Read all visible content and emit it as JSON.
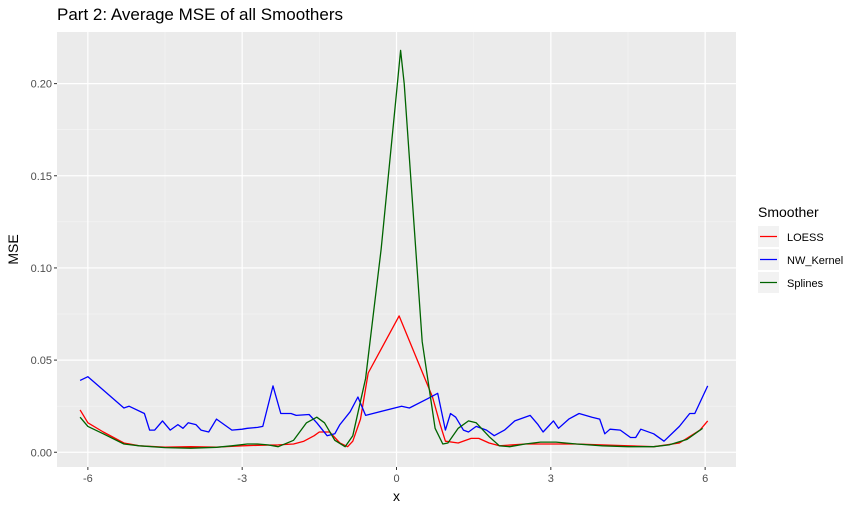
{
  "chart_data": {
    "type": "line",
    "title": "Part 2: Average MSE of all Smoothers",
    "xlabel": "x",
    "ylabel": "MSE",
    "xlim": [
      -6.6,
      6.6
    ],
    "ylim": [
      -0.008,
      0.228
    ],
    "x_ticks": [
      -6,
      -3,
      0,
      3,
      6
    ],
    "x_tick_labels": [
      "-6",
      "-3",
      "0",
      "3",
      "6"
    ],
    "y_ticks": [
      0.0,
      0.05,
      0.1,
      0.15,
      0.2
    ],
    "y_tick_labels": [
      "0.00",
      "0.05",
      "0.10",
      "0.15",
      "0.20"
    ],
    "grid": true,
    "legend": {
      "title": "Smoother",
      "position": "right"
    },
    "series": [
      {
        "name": "LOESS",
        "color": "#ff0000",
        "points": [
          [
            -6.15,
            0.023
          ],
          [
            -6.0,
            0.016
          ],
          [
            -5.7,
            0.011
          ],
          [
            -5.3,
            0.005
          ],
          [
            -5.0,
            0.0035
          ],
          [
            -4.5,
            0.0028
          ],
          [
            -4.0,
            0.003
          ],
          [
            -3.5,
            0.0028
          ],
          [
            -3.0,
            0.0035
          ],
          [
            -2.7,
            0.0038
          ],
          [
            -2.3,
            0.004
          ],
          [
            -2.0,
            0.0045
          ],
          [
            -1.8,
            0.006
          ],
          [
            -1.6,
            0.009
          ],
          [
            -1.5,
            0.011
          ],
          [
            -1.3,
            0.011
          ],
          [
            -1.1,
            0.005
          ],
          [
            -0.95,
            0.003
          ],
          [
            -0.85,
            0.006
          ],
          [
            -0.7,
            0.018
          ],
          [
            -0.55,
            0.043
          ],
          [
            0.05,
            0.074
          ],
          [
            0.7,
            0.03
          ],
          [
            0.85,
            0.015
          ],
          [
            0.95,
            0.006
          ],
          [
            1.2,
            0.005
          ],
          [
            1.45,
            0.0075
          ],
          [
            1.6,
            0.0075
          ],
          [
            1.8,
            0.005
          ],
          [
            2.0,
            0.0035
          ],
          [
            2.5,
            0.0045
          ],
          [
            3.0,
            0.0045
          ],
          [
            3.5,
            0.0045
          ],
          [
            4.0,
            0.004
          ],
          [
            4.5,
            0.0035
          ],
          [
            5.0,
            0.003
          ],
          [
            5.5,
            0.005
          ],
          [
            5.9,
            0.012
          ],
          [
            6.05,
            0.017
          ]
        ]
      },
      {
        "name": "NW_Kernel",
        "color": "#0000ff",
        "points": [
          [
            -6.15,
            0.039
          ],
          [
            -6.0,
            0.041
          ],
          [
            -5.3,
            0.024
          ],
          [
            -5.2,
            0.025
          ],
          [
            -4.9,
            0.021
          ],
          [
            -4.8,
            0.012
          ],
          [
            -4.7,
            0.012
          ],
          [
            -4.55,
            0.017
          ],
          [
            -4.4,
            0.012
          ],
          [
            -4.25,
            0.015
          ],
          [
            -4.15,
            0.013
          ],
          [
            -4.05,
            0.016
          ],
          [
            -3.9,
            0.015
          ],
          [
            -3.8,
            0.012
          ],
          [
            -3.65,
            0.011
          ],
          [
            -3.5,
            0.018
          ],
          [
            -3.2,
            0.012
          ],
          [
            -3.0,
            0.0125
          ],
          [
            -2.9,
            0.013
          ],
          [
            -2.7,
            0.0135
          ],
          [
            -2.6,
            0.014
          ],
          [
            -2.4,
            0.036
          ],
          [
            -2.25,
            0.021
          ],
          [
            -2.05,
            0.021
          ],
          [
            -1.95,
            0.02
          ],
          [
            -1.7,
            0.0205
          ],
          [
            -1.55,
            0.016
          ],
          [
            -1.35,
            0.009
          ],
          [
            -1.2,
            0.01
          ],
          [
            -1.1,
            0.015
          ],
          [
            -0.9,
            0.022
          ],
          [
            -0.75,
            0.03
          ],
          [
            -0.6,
            0.02
          ],
          [
            0.1,
            0.025
          ],
          [
            0.25,
            0.024
          ],
          [
            0.6,
            0.029
          ],
          [
            0.8,
            0.032
          ],
          [
            0.95,
            0.012
          ],
          [
            1.05,
            0.021
          ],
          [
            1.15,
            0.019
          ],
          [
            1.3,
            0.012
          ],
          [
            1.4,
            0.011
          ],
          [
            1.55,
            0.014
          ],
          [
            1.75,
            0.012
          ],
          [
            1.9,
            0.009
          ],
          [
            2.1,
            0.012
          ],
          [
            2.3,
            0.017
          ],
          [
            2.6,
            0.02
          ],
          [
            2.75,
            0.015
          ],
          [
            2.85,
            0.011
          ],
          [
            3.05,
            0.017
          ],
          [
            3.15,
            0.013
          ],
          [
            3.35,
            0.018
          ],
          [
            3.55,
            0.021
          ],
          [
            3.8,
            0.019
          ],
          [
            3.95,
            0.018
          ],
          [
            4.05,
            0.01
          ],
          [
            4.15,
            0.0125
          ],
          [
            4.35,
            0.012
          ],
          [
            4.55,
            0.008
          ],
          [
            4.65,
            0.008
          ],
          [
            4.75,
            0.0125
          ],
          [
            5.0,
            0.01
          ],
          [
            5.2,
            0.006
          ],
          [
            5.5,
            0.014
          ],
          [
            5.7,
            0.021
          ],
          [
            5.8,
            0.021
          ],
          [
            6.05,
            0.036
          ]
        ]
      },
      {
        "name": "Splines",
        "color": "#006400",
        "points": [
          [
            -6.15,
            0.019
          ],
          [
            -6.0,
            0.014
          ],
          [
            -5.7,
            0.01
          ],
          [
            -5.3,
            0.0045
          ],
          [
            -5.0,
            0.0035
          ],
          [
            -4.5,
            0.0025
          ],
          [
            -4.0,
            0.0022
          ],
          [
            -3.5,
            0.0027
          ],
          [
            -3.2,
            0.0035
          ],
          [
            -2.9,
            0.0045
          ],
          [
            -2.7,
            0.0045
          ],
          [
            -2.5,
            0.004
          ],
          [
            -2.3,
            0.003
          ],
          [
            -2.0,
            0.0065
          ],
          [
            -1.75,
            0.016
          ],
          [
            -1.55,
            0.019
          ],
          [
            -1.4,
            0.016
          ],
          [
            -1.2,
            0.0065
          ],
          [
            -1.0,
            0.003
          ],
          [
            -0.85,
            0.009
          ],
          [
            -0.6,
            0.04
          ],
          [
            -0.3,
            0.11
          ],
          [
            0.0,
            0.195
          ],
          [
            0.08,
            0.218
          ],
          [
            0.15,
            0.2
          ],
          [
            0.5,
            0.06
          ],
          [
            0.75,
            0.013
          ],
          [
            0.9,
            0.0045
          ],
          [
            1.0,
            0.005
          ],
          [
            1.2,
            0.013
          ],
          [
            1.4,
            0.017
          ],
          [
            1.55,
            0.016
          ],
          [
            1.8,
            0.0085
          ],
          [
            2.0,
            0.0035
          ],
          [
            2.2,
            0.003
          ],
          [
            2.5,
            0.0045
          ],
          [
            2.8,
            0.0055
          ],
          [
            3.1,
            0.0055
          ],
          [
            3.5,
            0.0045
          ],
          [
            4.0,
            0.0035
          ],
          [
            4.5,
            0.003
          ],
          [
            5.0,
            0.003
          ],
          [
            5.3,
            0.004
          ],
          [
            5.65,
            0.007
          ],
          [
            5.95,
            0.013
          ]
        ]
      }
    ]
  }
}
